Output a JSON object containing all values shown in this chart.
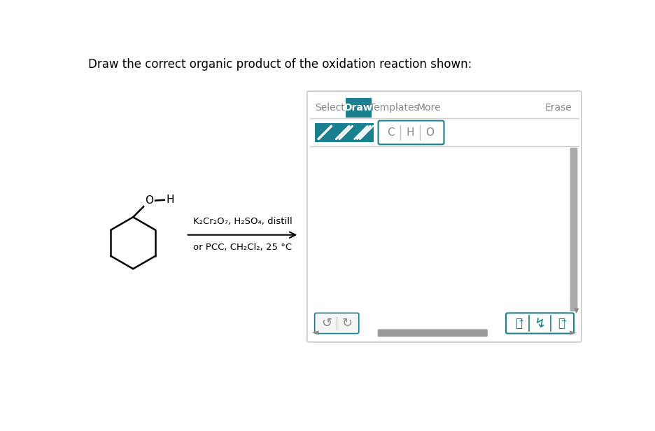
{
  "title": "Draw the correct organic product of the oxidation reaction shown:",
  "title_fontsize": 12,
  "title_color": "#000000",
  "bg_color": "#ffffff",
  "teal": "#1a7f8e",
  "gray_text": "#888888",
  "gray_border": "#bbbbbb",
  "gray_btn_bg": "#f0f0f0",
  "scrollbar_color": "#999999",
  "panel_border": "#cccccc",
  "reaction_text_line1": "K₂Cr₂O₇, H₂SO₄, distill",
  "reaction_text_line2": "or PCC, CH₂Cl₂, 25 °C",
  "toolbar_tabs": [
    "Select",
    "Draw",
    "Templates",
    "More"
  ],
  "active_tab": "Draw",
  "erase_label": "Erase",
  "atom_buttons": [
    "C",
    "H",
    "O"
  ]
}
